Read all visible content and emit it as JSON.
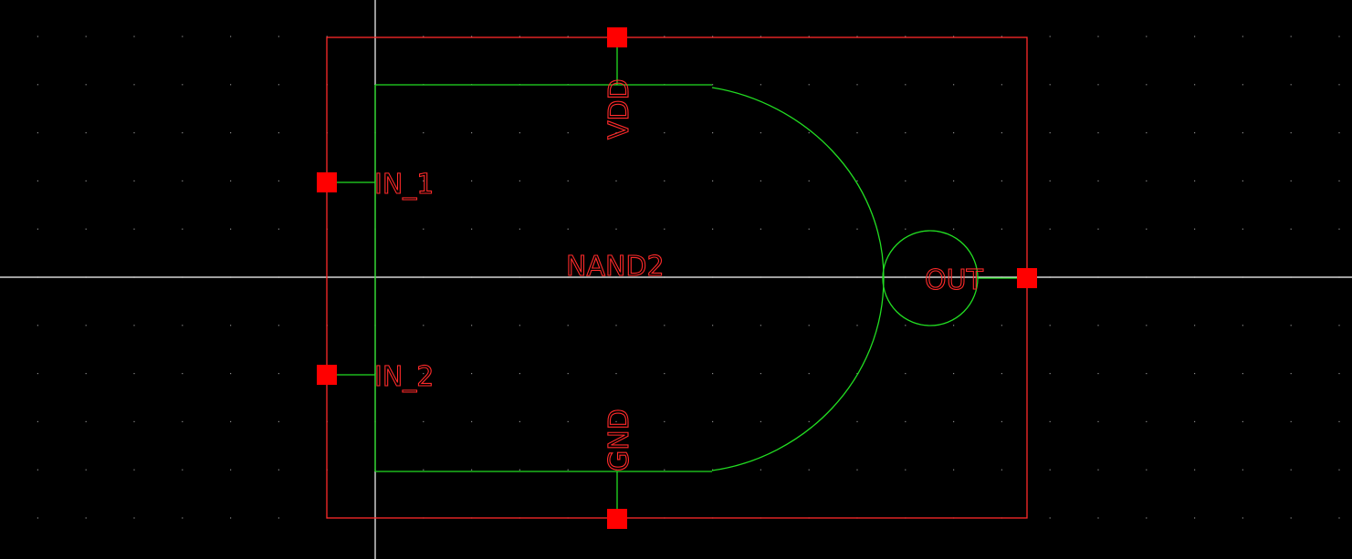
{
  "colors": {
    "background": "#000000",
    "grid_dot": "#8a8a8a",
    "crosshair": "#ffffff",
    "boundary": "#ff2a2a",
    "pin": "#ff0000",
    "pin_label": "#ff2a2a",
    "symbol": "#22dd22"
  },
  "symbol": {
    "cell_name": "NAND2",
    "pins": {
      "vdd": "VDD",
      "gnd": "GND",
      "in1": "IN_1",
      "in2": "IN_2",
      "out": "OUT"
    }
  }
}
